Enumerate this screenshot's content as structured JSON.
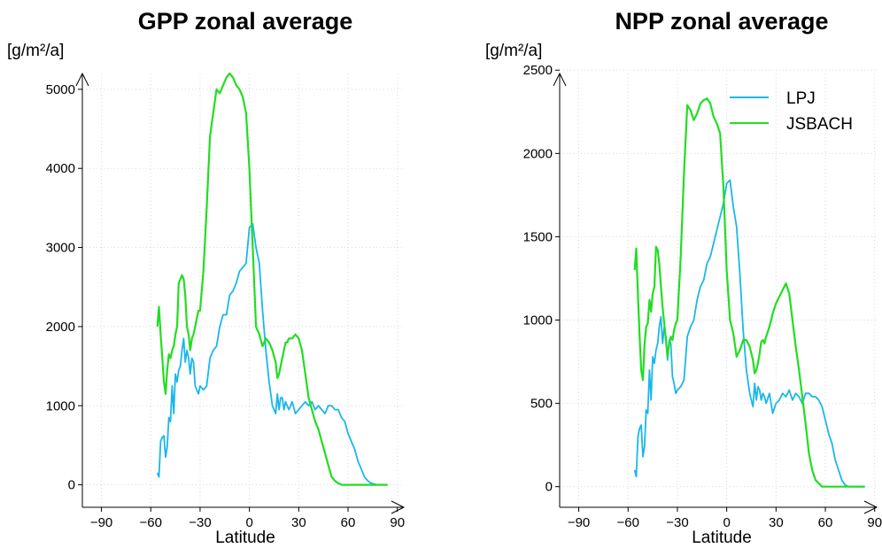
{
  "chart_data": [
    {
      "type": "line",
      "title": "GPP zonal average",
      "unit_label": "[g/m²/a]",
      "xlabel": "Latitude",
      "xlim": [
        -100,
        95
      ],
      "ylim": [
        -150,
        5200
      ],
      "xticks": [
        -90,
        -60,
        -30,
        0,
        30,
        60,
        90
      ],
      "yticks": [
        0,
        1000,
        2000,
        3000,
        4000,
        5000
      ],
      "grid": true,
      "legend": false,
      "series": [
        {
          "name": "LPJ",
          "color": "#1ab7ea",
          "x": [
            -56,
            -55,
            -54,
            -53,
            -52,
            -51,
            -50,
            -49,
            -48,
            -47,
            -46,
            -45,
            -44,
            -43,
            -42,
            -41,
            -40,
            -39,
            -38,
            -37,
            -36,
            -35,
            -34,
            -33,
            -32,
            -31,
            -30,
            -28,
            -26,
            -24,
            -22,
            -20,
            -18,
            -16,
            -14,
            -12,
            -10,
            -8,
            -6,
            -4,
            -2,
            0,
            2,
            4,
            6,
            8,
            10,
            12,
            14,
            16,
            17,
            18,
            19,
            20,
            21,
            22,
            23,
            24,
            26,
            28,
            30,
            32,
            34,
            36,
            38,
            40,
            42,
            44,
            46,
            48,
            50,
            52,
            54,
            56,
            58,
            60,
            62,
            64,
            66,
            68,
            70,
            72,
            74,
            76,
            78,
            80,
            82,
            84
          ],
          "y": [
            150,
            100,
            550,
            600,
            620,
            350,
            480,
            850,
            800,
            1250,
            900,
            1400,
            1300,
            1450,
            1500,
            1700,
            1850,
            1550,
            1700,
            1600,
            1400,
            1600,
            1550,
            1250,
            1200,
            1150,
            1250,
            1200,
            1250,
            1600,
            1700,
            1750,
            2000,
            2150,
            2150,
            2400,
            2450,
            2550,
            2700,
            2750,
            2800,
            3250,
            3300,
            3000,
            2800,
            2200,
            1700,
            1300,
            1000,
            900,
            1150,
            950,
            1100,
            1100,
            950,
            1050,
            1000,
            950,
            1050,
            900,
            950,
            1000,
            1050,
            1000,
            1050,
            950,
            1000,
            950,
            900,
            1000,
            1000,
            950,
            950,
            850,
            800,
            650,
            550,
            450,
            300,
            200,
            100,
            50,
            20,
            10,
            0,
            0,
            0,
            0
          ]
        },
        {
          "name": "JSBACH",
          "color": "#22dd22",
          "x": [
            -56,
            -55,
            -54,
            -53,
            -52,
            -51,
            -50,
            -49,
            -48,
            -47,
            -46,
            -45,
            -44,
            -43,
            -42,
            -41,
            -40,
            -39,
            -38,
            -37,
            -36,
            -35,
            -34,
            -33,
            -32,
            -31,
            -30,
            -28,
            -26,
            -24,
            -22,
            -20,
            -18,
            -16,
            -14,
            -12,
            -10,
            -8,
            -6,
            -4,
            -2,
            0,
            2,
            4,
            6,
            8,
            10,
            12,
            14,
            16,
            17,
            18,
            19,
            20,
            21,
            22,
            23,
            24,
            26,
            28,
            30,
            32,
            34,
            36,
            38,
            40,
            42,
            44,
            46,
            48,
            50,
            52,
            54,
            56,
            58,
            60,
            62,
            64,
            66,
            68,
            70,
            72,
            74,
            76,
            78,
            80,
            82,
            84
          ],
          "y": [
            2000,
            2250,
            1900,
            1600,
            1300,
            1150,
            1450,
            1650,
            1600,
            1700,
            1750,
            1900,
            2000,
            2550,
            2600,
            2650,
            2600,
            2400,
            2000,
            1900,
            1700,
            1850,
            1900,
            2000,
            2100,
            2200,
            2200,
            2700,
            3500,
            4400,
            4700,
            5000,
            4950,
            5050,
            5150,
            5200,
            5150,
            5050,
            5000,
            4900,
            4700,
            4000,
            3000,
            2000,
            1900,
            1750,
            1850,
            1800,
            1700,
            1550,
            1350,
            1400,
            1500,
            1600,
            1700,
            1800,
            1800,
            1850,
            1850,
            1900,
            1850,
            1700,
            1400,
            1100,
            950,
            800,
            700,
            550,
            400,
            250,
            100,
            50,
            20,
            0,
            0,
            0,
            0,
            0,
            0,
            0,
            0,
            0,
            0,
            0,
            0,
            0,
            0,
            0
          ]
        }
      ]
    },
    {
      "type": "line",
      "title": "NPP zonal average",
      "unit_label": "[g/m²/a]",
      "xlabel": "Latitude",
      "xlim": [
        -100,
        95
      ],
      "ylim": [
        -60,
        2480
      ],
      "xticks": [
        -90,
        -60,
        -30,
        0,
        30,
        60,
        90
      ],
      "yticks": [
        0,
        500,
        1000,
        1500,
        2000,
        2500
      ],
      "grid": true,
      "legend": true,
      "legend_position": "top-right",
      "series": [
        {
          "name": "LPJ",
          "color": "#1ab7ea",
          "x": [
            -56,
            -55,
            -54,
            -53,
            -52,
            -51,
            -50,
            -49,
            -48,
            -47,
            -46,
            -45,
            -44,
            -43,
            -42,
            -41,
            -40,
            -39,
            -38,
            -37,
            -36,
            -35,
            -34,
            -33,
            -32,
            -31,
            -30,
            -28,
            -26,
            -24,
            -22,
            -20,
            -18,
            -16,
            -14,
            -12,
            -10,
            -8,
            -6,
            -4,
            -2,
            0,
            2,
            4,
            6,
            8,
            10,
            12,
            14,
            16,
            17,
            18,
            19,
            20,
            21,
            22,
            23,
            24,
            26,
            28,
            30,
            32,
            34,
            36,
            38,
            40,
            42,
            44,
            46,
            48,
            50,
            52,
            54,
            56,
            58,
            60,
            62,
            64,
            66,
            68,
            70,
            72,
            74,
            76,
            78,
            80,
            82,
            84
          ],
          "y": [
            100,
            60,
            300,
            350,
            370,
            180,
            240,
            460,
            440,
            700,
            520,
            780,
            740,
            820,
            860,
            960,
            1020,
            860,
            960,
            900,
            760,
            880,
            860,
            660,
            620,
            560,
            580,
            600,
            640,
            900,
            960,
            1000,
            1120,
            1200,
            1240,
            1340,
            1380,
            1460,
            1540,
            1620,
            1700,
            1820,
            1840,
            1680,
            1560,
            1280,
            940,
            700,
            560,
            480,
            620,
            520,
            600,
            580,
            520,
            560,
            540,
            500,
            560,
            440,
            500,
            520,
            560,
            540,
            580,
            520,
            560,
            540,
            500,
            560,
            560,
            540,
            540,
            520,
            480,
            400,
            320,
            260,
            160,
            100,
            40,
            10,
            0,
            0,
            0,
            0,
            0,
            0
          ]
        },
        {
          "name": "JSBACH",
          "color": "#22dd22",
          "x": [
            -56,
            -55,
            -54,
            -53,
            -52,
            -51,
            -50,
            -49,
            -48,
            -47,
            -46,
            -45,
            -44,
            -43,
            -42,
            -41,
            -40,
            -39,
            -38,
            -37,
            -36,
            -35,
            -34,
            -33,
            -32,
            -31,
            -30,
            -28,
            -26,
            -24,
            -22,
            -20,
            -18,
            -16,
            -14,
            -12,
            -10,
            -8,
            -6,
            -4,
            -2,
            0,
            2,
            4,
            6,
            8,
            10,
            12,
            14,
            16,
            17,
            18,
            19,
            20,
            21,
            22,
            23,
            24,
            26,
            28,
            30,
            32,
            34,
            36,
            38,
            40,
            42,
            44,
            46,
            48,
            50,
            52,
            54,
            56,
            58,
            60,
            62,
            64,
            66,
            68,
            70,
            72,
            74,
            76,
            78,
            80,
            82,
            84
          ],
          "y": [
            1300,
            1430,
            1150,
            900,
            700,
            640,
            850,
            960,
            980,
            1120,
            1050,
            1160,
            1200,
            1440,
            1420,
            1340,
            1200,
            1080,
            980,
            880,
            780,
            860,
            900,
            880,
            940,
            980,
            1000,
            1380,
            1880,
            2290,
            2260,
            2200,
            2240,
            2300,
            2320,
            2330,
            2300,
            2220,
            2180,
            2120,
            1800,
            1300,
            1000,
            920,
            780,
            820,
            880,
            880,
            840,
            760,
            680,
            700,
            740,
            800,
            870,
            880,
            860,
            900,
            960,
            1040,
            1100,
            1140,
            1180,
            1220,
            1160,
            1000,
            840,
            700,
            540,
            380,
            200,
            100,
            40,
            20,
            0,
            0,
            0,
            0,
            0,
            0,
            0,
            0,
            0,
            0,
            0,
            0,
            0,
            0
          ]
        }
      ]
    }
  ]
}
